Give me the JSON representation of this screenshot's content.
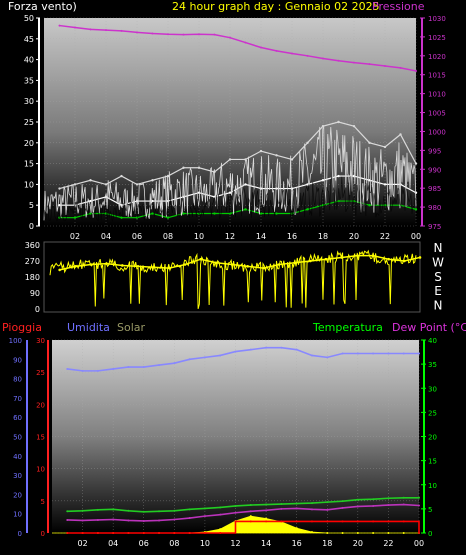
{
  "header": {
    "left": "Forza vento)",
    "center": "24 hour graph day : Gennaio 02 2025",
    "right": "Pressione"
  },
  "bottom_header": {
    "rain": "Pioggia",
    "humidity": "Umidita",
    "solar": "Solar",
    "temperature": "Temperatura",
    "dewpoint": "Dew Point (°C)"
  },
  "colors": {
    "wind": "#ffffff",
    "gust": "#d9d9d9",
    "wind_avg": "#00cc00",
    "pressure": "#cc33cc",
    "direction": "#ffff00",
    "humidity": "#8888ff",
    "temperature": "#22cc22",
    "dewpoint": "#bb33bb",
    "rain": "#ff0000",
    "solar": "#ffff00",
    "title": "#ffff00",
    "left_axis_red": "#ff2020",
    "right_axis_green": "#00ff00",
    "humidity_axis": "#7070ff"
  },
  "x_ticks": [
    "02",
    "04",
    "06",
    "08",
    "10",
    "12",
    "14",
    "16",
    "18",
    "20",
    "22",
    "00"
  ],
  "wind_yticks": [
    0,
    5,
    10,
    15,
    20,
    25,
    30,
    35,
    40,
    45,
    50
  ],
  "pressure_yticks": [
    975,
    980,
    985,
    990,
    995,
    1000,
    1005,
    1010,
    1015,
    1020,
    1025,
    1030
  ],
  "dir_yticks": [
    0,
    90,
    180,
    270,
    360
  ],
  "dir_letters": [
    "N",
    "W",
    "S",
    "E",
    "N"
  ],
  "rain_yticks": [
    0,
    5,
    10,
    15,
    20,
    25,
    30
  ],
  "hum_yticks": [
    0,
    10,
    20,
    30,
    40,
    50,
    60,
    70,
    80,
    90,
    100
  ],
  "temp_yticks": [
    0,
    5,
    10,
    15,
    20,
    25,
    30,
    35,
    40
  ],
  "chart_data": [
    {
      "type": "line",
      "title": "24 hour graph day : Gennaio 02 2025",
      "ylabel": "Forza vento)",
      "y2label": "Pressione",
      "ylim": [
        0,
        50
      ],
      "y2lim": [
        975,
        1030
      ],
      "x": [
        "01",
        "02",
        "03",
        "04",
        "05",
        "06",
        "07",
        "08",
        "09",
        "10",
        "11",
        "12",
        "13",
        "14",
        "15",
        "16",
        "17",
        "18",
        "19",
        "20",
        "21",
        "22",
        "23",
        "00"
      ],
      "series": [
        {
          "axis": "left",
          "values": [
            5,
            5,
            6,
            7,
            5,
            6,
            6,
            6,
            7,
            8,
            7,
            8,
            10,
            9,
            9,
            9,
            10,
            11,
            12,
            12,
            11,
            10,
            10,
            8
          ]
        },
        {
          "axis": "left",
          "values": [
            9,
            10,
            11,
            10,
            12,
            10,
            11,
            12,
            14,
            14,
            13,
            16,
            16,
            18,
            17,
            16,
            20,
            24,
            25,
            24,
            20,
            19,
            22,
            15
          ]
        },
        {
          "axis": "left",
          "values": [
            2,
            2,
            3,
            3,
            2,
            2,
            3,
            2,
            3,
            3,
            3,
            3,
            4,
            3,
            3,
            3,
            4,
            5,
            6,
            6,
            5,
            5,
            5,
            4
          ]
        },
        {
          "axis": "right",
          "name": "Pressione",
          "values": [
            1028,
            1027.5,
            1027,
            1026.8,
            1026.6,
            1026.2,
            1025.9,
            1025.7,
            1025.6,
            1025.7,
            1025.6,
            1024.8,
            1023.5,
            1022.2,
            1021.3,
            1020.6,
            1020.0,
            1019.3,
            1018.7,
            1018.2,
            1017.8,
            1017.3,
            1016.8,
            1016.0
          ]
        }
      ]
    },
    {
      "type": "scatter",
      "ylabel": "",
      "ylim": [
        0,
        360
      ],
      "x": [
        "01",
        "02",
        "03",
        "04",
        "05",
        "06",
        "07",
        "08",
        "09",
        "10",
        "11",
        "12",
        "13",
        "14",
        "15",
        "16",
        "17",
        "18",
        "19",
        "20",
        "21",
        "22",
        "23",
        "00"
      ],
      "series": [
        {
          "values": [
            220,
            240,
            250,
            255,
            245,
            240,
            235,
            230,
            250,
            280,
            260,
            250,
            240,
            230,
            250,
            260,
            270,
            280,
            290,
            300,
            300,
            280,
            270,
            290
          ]
        }
      ]
    },
    {
      "type": "line",
      "ylabel": "Pioggia",
      "ylim": [
        0,
        30
      ],
      "y2lim": [
        0,
        40
      ],
      "x": [
        "01",
        "02",
        "03",
        "04",
        "05",
        "06",
        "07",
        "08",
        "09",
        "10",
        "11",
        "12",
        "13",
        "14",
        "15",
        "16",
        "17",
        "18",
        "19",
        "20",
        "21",
        "22",
        "23",
        "00"
      ],
      "series": [
        {
          "name": "Umidita",
          "axis": "humidity",
          "values": [
            85,
            84,
            84,
            85,
            86,
            86,
            87,
            88,
            90,
            91,
            92,
            94,
            95,
            96,
            96,
            95,
            92,
            91,
            93,
            93,
            93,
            93,
            93,
            93
          ]
        },
        {
          "name": "Temperatura",
          "axis": "right",
          "values": [
            4.5,
            4.6,
            4.8,
            4.9,
            4.6,
            4.4,
            4.5,
            4.6,
            4.9,
            5.1,
            5.3,
            5.6,
            5.8,
            5.9,
            6.0,
            6.1,
            6.2,
            6.4,
            6.6,
            6.9,
            7.0,
            7.2,
            7.3,
            7.3
          ]
        },
        {
          "name": "Dew Point (°C)",
          "axis": "right",
          "values": [
            2.7,
            2.6,
            2.7,
            2.8,
            2.6,
            2.5,
            2.6,
            2.8,
            3.1,
            3.5,
            3.8,
            4.2,
            4.5,
            4.7,
            5.0,
            5.1,
            4.9,
            4.8,
            5.2,
            5.5,
            5.6,
            5.8,
            5.9,
            5.7
          ]
        },
        {
          "name": "Pioggia",
          "axis": "left",
          "values": [
            0,
            0,
            0,
            0,
            0,
            0,
            0,
            0,
            0,
            0,
            0,
            1.8,
            1.8,
            1.8,
            1.8,
            1.8,
            1.8,
            1.8,
            1.8,
            1.8,
            1.8,
            1.8,
            1.8,
            0
          ]
        },
        {
          "name": "Solar",
          "axis": "right",
          "values": [
            0,
            0,
            0,
            0,
            0,
            0,
            0,
            0,
            0,
            0.2,
            0.8,
            2.5,
            3.5,
            3.0,
            2.3,
            1.0,
            0.2,
            0,
            0,
            0,
            0,
            0,
            0,
            0
          ]
        }
      ]
    }
  ]
}
